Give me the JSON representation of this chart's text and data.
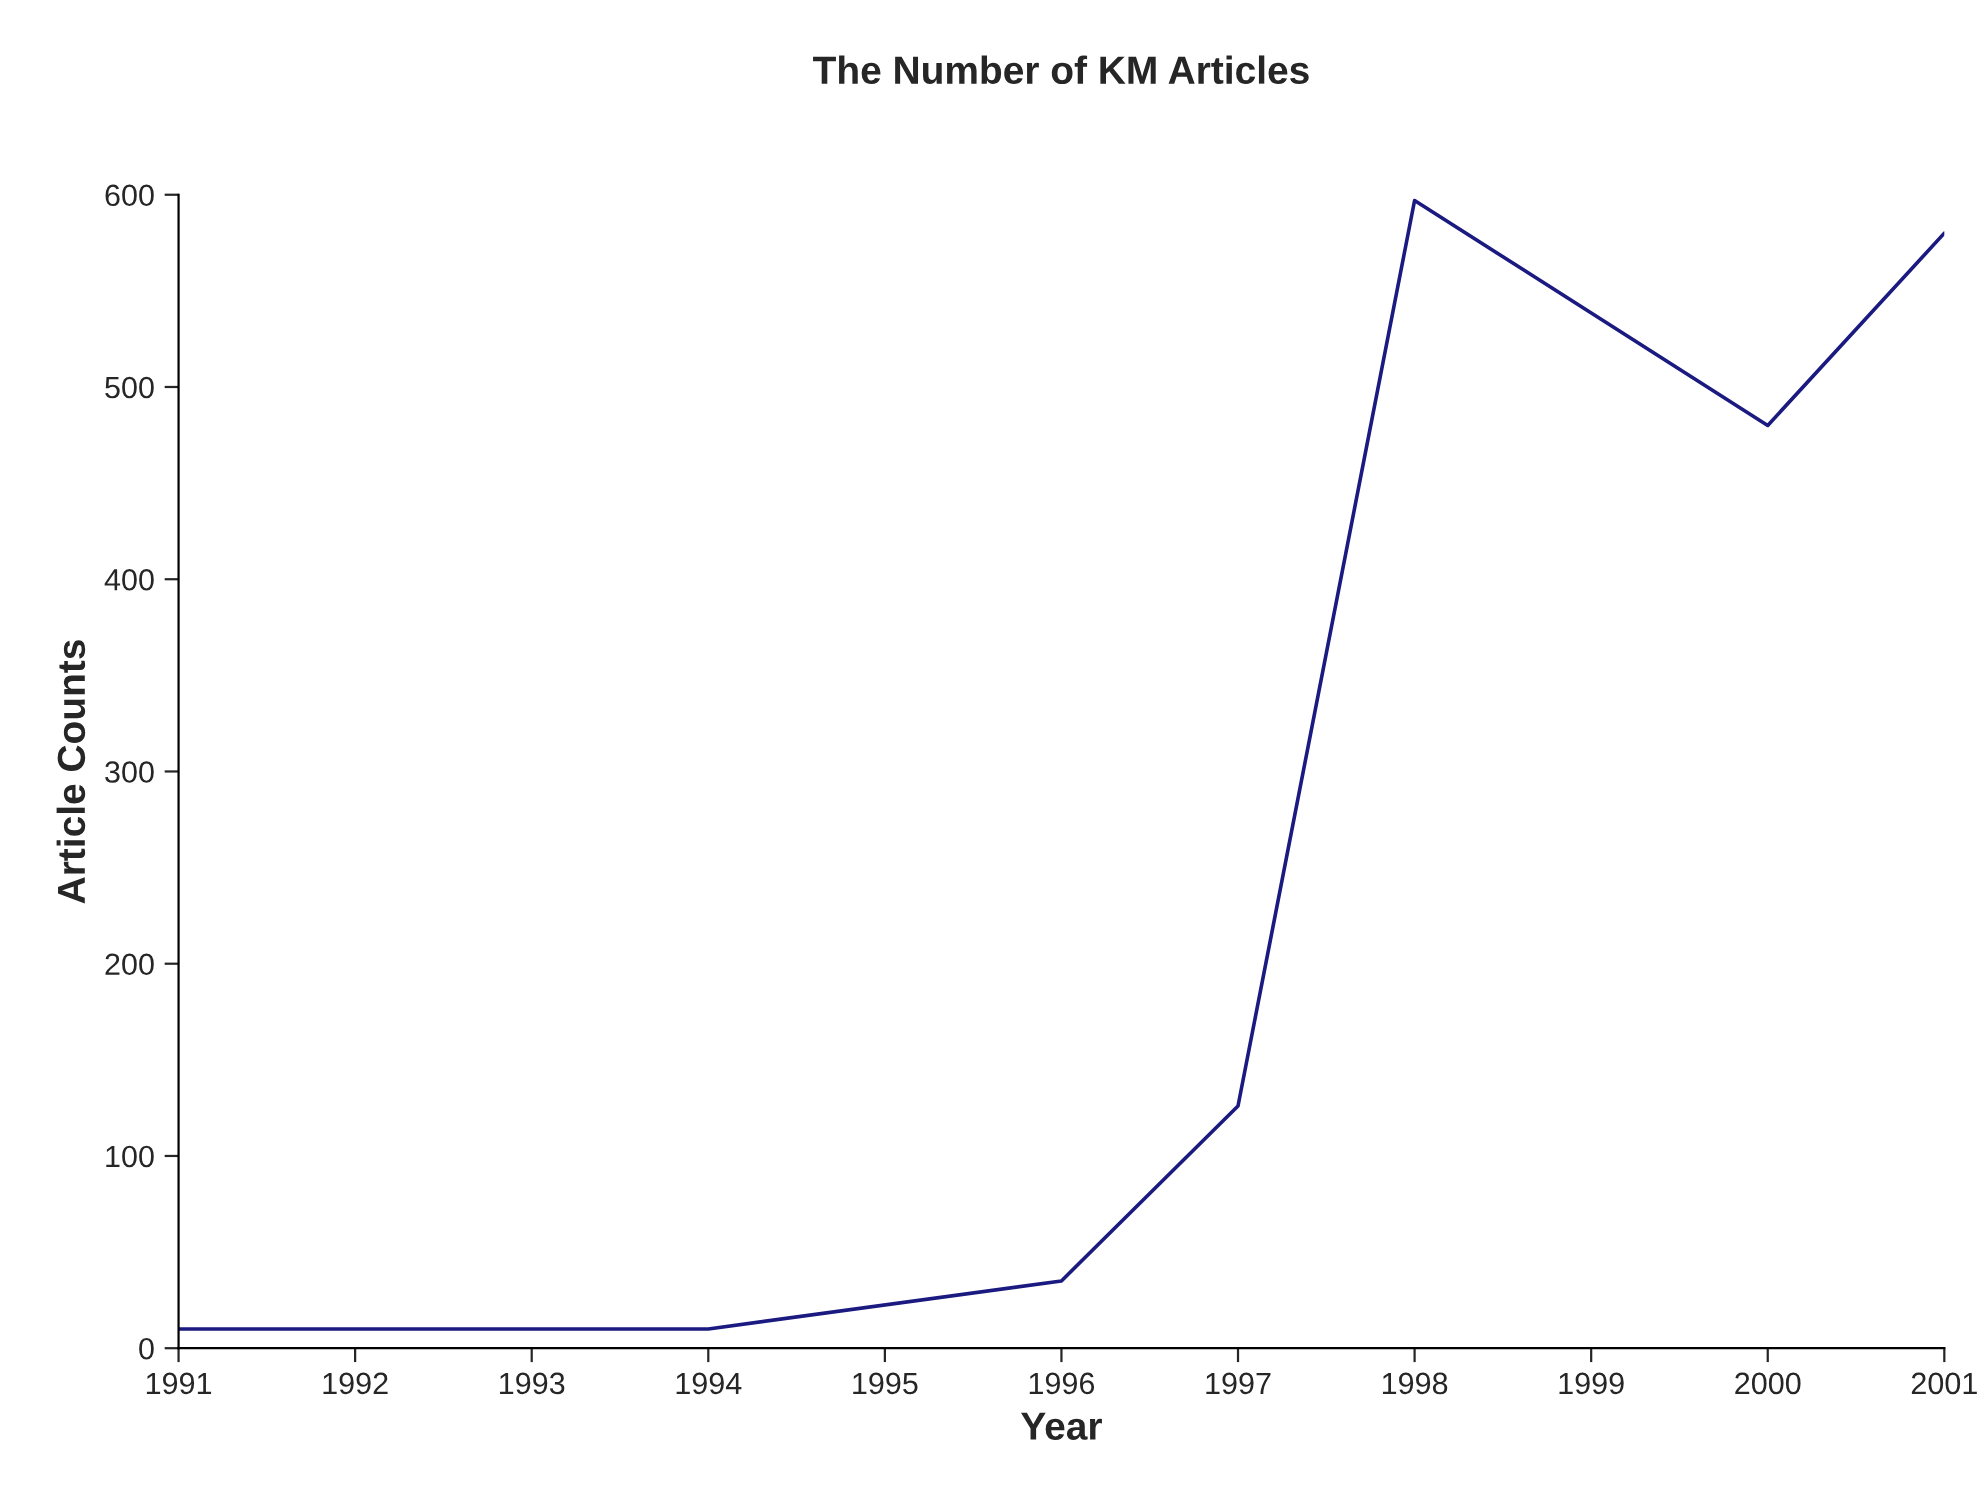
{
  "chart_data": {
    "type": "line",
    "title": "The Number of KM Articles",
    "xlabel": "Year",
    "ylabel": "Article Counts",
    "x": [
      1991,
      1994,
      1996,
      1997,
      1998,
      2000,
      2001
    ],
    "series": [
      {
        "color": "#1a1a80",
        "values": [
          10,
          10,
          35,
          126,
          597,
          480,
          580
        ]
      }
    ],
    "xlim": [
      1991,
      2001
    ],
    "xticks": [
      1991,
      1992,
      1993,
      1994,
      1995,
      1996,
      1997,
      1998,
      1999,
      2000,
      2001
    ],
    "ylim": [
      0,
      600
    ],
    "yticks": [
      0,
      100,
      200,
      300,
      400,
      500,
      600
    ],
    "grid": false,
    "legend": false,
    "marker": "none",
    "line_style": "solid"
  }
}
